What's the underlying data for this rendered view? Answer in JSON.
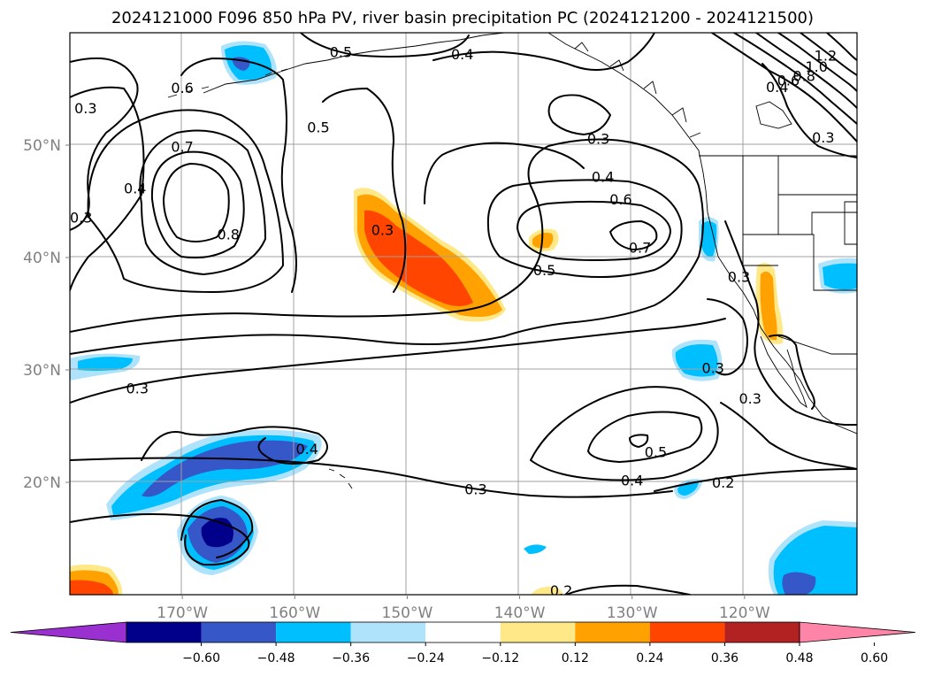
{
  "chart_data": {
    "type": "map-contour",
    "title": "2024121000 F096 850 hPa PV, river basin precipitation PC (2024121200 - 2024121500)",
    "lon_range": [
      180,
      110
    ],
    "lat_range": [
      10,
      60
    ],
    "x_ticks": [
      {
        "lon": 170,
        "label": "170°W"
      },
      {
        "lon": 160,
        "label": "160°W"
      },
      {
        "lon": 150,
        "label": "150°W"
      },
      {
        "lon": 140,
        "label": "140°W"
      },
      {
        "lon": 130,
        "label": "130°W"
      },
      {
        "lon": 120,
        "label": "120°W"
      }
    ],
    "y_ticks": [
      {
        "lat": 50,
        "label": "50°N"
      },
      {
        "lat": 40,
        "label": "40°N"
      },
      {
        "lat": 30,
        "label": "30°N"
      },
      {
        "lat": 20,
        "label": "20°N"
      }
    ],
    "grid": true,
    "colorbar": {
      "levels": [
        "−0.60",
        "−0.48",
        "−0.36",
        "−0.24",
        "−0.12",
        "0.12",
        "0.24",
        "0.36",
        "0.48",
        "0.60"
      ],
      "colors": [
        "#9b30d0",
        "#00008b",
        "#3557c8",
        "#00bfff",
        "#aee3fb",
        "#ffffff",
        "#ffe887",
        "#ffa100",
        "#ff4500",
        "#b22222",
        "#ff85a8"
      ],
      "extend": "both"
    },
    "contour_labels": [
      {
        "text": "0.5",
        "lon": 155.9,
        "lat": 58.3
      },
      {
        "text": "0.4",
        "lon": 145.1,
        "lat": 58.1
      },
      {
        "text": "1.2",
        "lon": 112.8,
        "lat": 58.0
      },
      {
        "text": "1.0",
        "lon": 113.6,
        "lat": 57.0
      },
      {
        "text": "0.8",
        "lon": 114.7,
        "lat": 56.2
      },
      {
        "text": "0.6",
        "lon": 116.1,
        "lat": 55.8
      },
      {
        "text": "0.4",
        "lon": 117.1,
        "lat": 55.2
      },
      {
        "text": "0.6",
        "lon": 170.0,
        "lat": 55.1
      },
      {
        "text": "0.3",
        "lon": 178.6,
        "lat": 53.3
      },
      {
        "text": "0.5",
        "lon": 157.9,
        "lat": 51.6
      },
      {
        "text": "0.3",
        "lon": 113.0,
        "lat": 50.7
      },
      {
        "text": "0.3",
        "lon": 133.0,
        "lat": 50.6
      },
      {
        "text": "0.7",
        "lon": 170.0,
        "lat": 49.9
      },
      {
        "text": "0.4",
        "lon": 174.2,
        "lat": 46.2
      },
      {
        "text": "0.4",
        "lon": 132.6,
        "lat": 47.2
      },
      {
        "text": "0.6",
        "lon": 131.0,
        "lat": 45.2
      },
      {
        "text": "0.3",
        "lon": 179.0,
        "lat": 43.6
      },
      {
        "text": "0.3",
        "lon": 152.2,
        "lat": 42.5
      },
      {
        "text": "0.8",
        "lon": 165.9,
        "lat": 42.1
      },
      {
        "text": "0.7",
        "lon": 129.3,
        "lat": 40.9
      },
      {
        "text": "0.5",
        "lon": 137.8,
        "lat": 38.9
      },
      {
        "text": "0.3",
        "lon": 120.5,
        "lat": 38.3
      },
      {
        "text": "0.3",
        "lon": 122.8,
        "lat": 30.2
      },
      {
        "text": "0.3",
        "lon": 174.0,
        "lat": 28.4
      },
      {
        "text": "0.3",
        "lon": 119.5,
        "lat": 27.5
      },
      {
        "text": "0.4",
        "lon": 158.9,
        "lat": 23.0
      },
      {
        "text": "0.5",
        "lon": 127.9,
        "lat": 22.7
      },
      {
        "text": "0.4",
        "lon": 130.0,
        "lat": 20.2
      },
      {
        "text": "0.2",
        "lon": 121.9,
        "lat": 20.0
      },
      {
        "text": "0.3",
        "lon": 143.9,
        "lat": 19.4
      },
      {
        "text": "0.2",
        "lon": 136.3,
        "lat": 10.4
      }
    ]
  }
}
